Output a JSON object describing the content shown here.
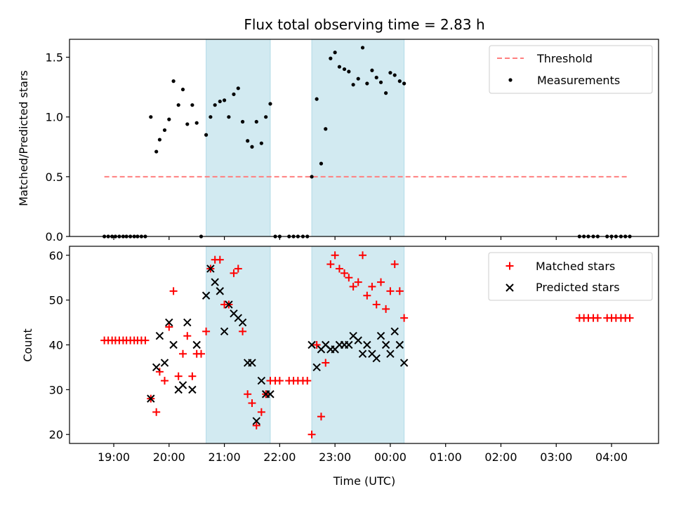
{
  "chart_data": [
    {
      "type": "scatter",
      "title": "Flux total observing time = 2.83 h",
      "xlabel": "",
      "ylabel": "Matched/Predicted stars",
      "ylim": [
        0,
        1.65
      ],
      "yticks": [
        "0.0",
        "0.5",
        "1.0",
        "1.5"
      ],
      "x_range_hours": [
        18.2,
        28.85
      ],
      "shaded_intervals_hours": [
        [
          20.67,
          21.83
        ],
        [
          22.58,
          24.25
        ]
      ],
      "legend": {
        "placement": "top-right",
        "entries": [
          "Threshold",
          "Measurements"
        ]
      },
      "colors": {
        "threshold": "#ff7f7f",
        "measurements": "#000000",
        "shade": "#add8e6"
      },
      "threshold": {
        "name": "Threshold",
        "value": 0.5,
        "x_hours": [
          18.83,
          28.3
        ]
      },
      "measurements": {
        "name": "Measurements",
        "points": [
          [
            18.83,
            0
          ],
          [
            18.9,
            0
          ],
          [
            18.97,
            0
          ],
          [
            19.03,
            0
          ],
          [
            19.1,
            0
          ],
          [
            19.17,
            0
          ],
          [
            19.23,
            0
          ],
          [
            19.3,
            0
          ],
          [
            19.37,
            0
          ],
          [
            19.43,
            0
          ],
          [
            19.5,
            0
          ],
          [
            19.57,
            0
          ],
          [
            19.67,
            1.0
          ],
          [
            19.77,
            0.71
          ],
          [
            19.83,
            0.81
          ],
          [
            19.92,
            0.89
          ],
          [
            20.0,
            0.98
          ],
          [
            20.08,
            1.3
          ],
          [
            20.17,
            1.1
          ],
          [
            20.25,
            1.23
          ],
          [
            20.33,
            0.94
          ],
          [
            20.42,
            1.1
          ],
          [
            20.5,
            0.95
          ],
          [
            20.58,
            0
          ],
          [
            20.67,
            0.85
          ],
          [
            20.75,
            1.0
          ],
          [
            20.83,
            1.1
          ],
          [
            20.92,
            1.13
          ],
          [
            21.0,
            1.14
          ],
          [
            21.08,
            1.0
          ],
          [
            21.17,
            1.19
          ],
          [
            21.25,
            1.24
          ],
          [
            21.33,
            0.96
          ],
          [
            21.42,
            0.8
          ],
          [
            21.5,
            0.75
          ],
          [
            21.58,
            0.96
          ],
          [
            21.67,
            0.78
          ],
          [
            21.75,
            1.0
          ],
          [
            21.83,
            1.11
          ],
          [
            21.92,
            0
          ],
          [
            22.0,
            0
          ],
          [
            22.17,
            0
          ],
          [
            22.25,
            0
          ],
          [
            22.33,
            0
          ],
          [
            22.42,
            0
          ],
          [
            22.5,
            0
          ],
          [
            22.58,
            0.5
          ],
          [
            22.67,
            1.15
          ],
          [
            22.75,
            0.61
          ],
          [
            22.83,
            0.9
          ],
          [
            22.92,
            1.49
          ],
          [
            23.0,
            1.54
          ],
          [
            23.08,
            1.42
          ],
          [
            23.17,
            1.4
          ],
          [
            23.25,
            1.38
          ],
          [
            23.33,
            1.27
          ],
          [
            23.42,
            1.32
          ],
          [
            23.5,
            1.58
          ],
          [
            23.58,
            1.28
          ],
          [
            23.67,
            1.39
          ],
          [
            23.75,
            1.33
          ],
          [
            23.83,
            1.29
          ],
          [
            23.92,
            1.2
          ],
          [
            24.0,
            1.37
          ],
          [
            24.08,
            1.35
          ],
          [
            24.17,
            1.3
          ],
          [
            24.25,
            1.28
          ],
          [
            27.42,
            0
          ],
          [
            27.5,
            0
          ],
          [
            27.58,
            0
          ],
          [
            27.67,
            0
          ],
          [
            27.75,
            0
          ],
          [
            27.92,
            0
          ],
          [
            28.0,
            0
          ],
          [
            28.08,
            0
          ],
          [
            28.17,
            0
          ],
          [
            28.25,
            0
          ],
          [
            28.33,
            0
          ]
        ]
      }
    },
    {
      "type": "scatter",
      "title": "",
      "xlabel": "Time (UTC)",
      "ylabel": "Count",
      "ylim": [
        18,
        62
      ],
      "yticks": [
        "20",
        "30",
        "40",
        "50",
        "60"
      ],
      "x_tick_labels": [
        "19:00",
        "20:00",
        "21:00",
        "22:00",
        "23:00",
        "00:00",
        "01:00",
        "02:00",
        "03:00",
        "04:00"
      ],
      "x_tick_hours": [
        19,
        20,
        21,
        22,
        23,
        24,
        25,
        26,
        27,
        28
      ],
      "x_range_hours": [
        18.2,
        28.85
      ],
      "shaded_intervals_hours": [
        [
          20.67,
          21.83
        ],
        [
          22.58,
          24.25
        ]
      ],
      "legend": {
        "placement": "top-right",
        "entries": [
          "Matched stars",
          "Predicted stars"
        ]
      },
      "colors": {
        "matched": "#ff0000",
        "predicted": "#000000",
        "shade": "#add8e6"
      },
      "series": [
        {
          "name": "Matched stars",
          "marker": "plus",
          "points": [
            [
              18.83,
              41
            ],
            [
              18.9,
              41
            ],
            [
              18.97,
              41
            ],
            [
              19.03,
              41
            ],
            [
              19.1,
              41
            ],
            [
              19.17,
              41
            ],
            [
              19.23,
              41
            ],
            [
              19.3,
              41
            ],
            [
              19.37,
              41
            ],
            [
              19.43,
              41
            ],
            [
              19.5,
              41
            ],
            [
              19.57,
              41
            ],
            [
              19.67,
              28
            ],
            [
              19.77,
              25
            ],
            [
              19.83,
              34
            ],
            [
              19.92,
              32
            ],
            [
              20.0,
              44
            ],
            [
              20.08,
              52
            ],
            [
              20.17,
              33
            ],
            [
              20.25,
              38
            ],
            [
              20.33,
              42
            ],
            [
              20.42,
              33
            ],
            [
              20.5,
              38
            ],
            [
              20.58,
              38
            ],
            [
              20.67,
              43
            ],
            [
              20.75,
              57
            ],
            [
              20.83,
              59
            ],
            [
              20.92,
              59
            ],
            [
              21.0,
              49
            ],
            [
              21.08,
              49
            ],
            [
              21.17,
              56
            ],
            [
              21.25,
              57
            ],
            [
              21.33,
              43
            ],
            [
              21.42,
              29
            ],
            [
              21.5,
              27
            ],
            [
              21.58,
              22
            ],
            [
              21.67,
              25
            ],
            [
              21.75,
              29
            ],
            [
              21.83,
              32
            ],
            [
              21.92,
              32
            ],
            [
              22.0,
              32
            ],
            [
              22.17,
              32
            ],
            [
              22.25,
              32
            ],
            [
              22.33,
              32
            ],
            [
              22.42,
              32
            ],
            [
              22.5,
              32
            ],
            [
              22.58,
              20
            ],
            [
              22.67,
              40
            ],
            [
              22.75,
              24
            ],
            [
              22.83,
              36
            ],
            [
              22.92,
              58
            ],
            [
              23.0,
              60
            ],
            [
              23.08,
              57
            ],
            [
              23.17,
              56
            ],
            [
              23.25,
              55
            ],
            [
              23.33,
              53
            ],
            [
              23.42,
              54
            ],
            [
              23.5,
              60
            ],
            [
              23.58,
              51
            ],
            [
              23.67,
              53
            ],
            [
              23.75,
              49
            ],
            [
              23.83,
              54
            ],
            [
              23.92,
              48
            ],
            [
              24.0,
              52
            ],
            [
              24.08,
              58
            ],
            [
              24.17,
              52
            ],
            [
              24.25,
              46
            ],
            [
              27.42,
              46
            ],
            [
              27.5,
              46
            ],
            [
              27.58,
              46
            ],
            [
              27.67,
              46
            ],
            [
              27.75,
              46
            ],
            [
              27.92,
              46
            ],
            [
              28.0,
              46
            ],
            [
              28.08,
              46
            ],
            [
              28.17,
              46
            ],
            [
              28.25,
              46
            ],
            [
              28.33,
              46
            ]
          ]
        },
        {
          "name": "Predicted stars",
          "marker": "x",
          "points": [
            [
              19.67,
              28
            ],
            [
              19.77,
              35
            ],
            [
              19.83,
              42
            ],
            [
              19.92,
              36
            ],
            [
              20.0,
              45
            ],
            [
              20.08,
              40
            ],
            [
              20.17,
              30
            ],
            [
              20.25,
              31
            ],
            [
              20.33,
              45
            ],
            [
              20.42,
              30
            ],
            [
              20.5,
              40
            ],
            [
              20.67,
              51
            ],
            [
              20.75,
              57
            ],
            [
              20.83,
              54
            ],
            [
              20.92,
              52
            ],
            [
              21.0,
              43
            ],
            [
              21.08,
              49
            ],
            [
              21.17,
              47
            ],
            [
              21.25,
              46
            ],
            [
              21.33,
              45
            ],
            [
              21.42,
              36
            ],
            [
              21.5,
              36
            ],
            [
              21.58,
              23
            ],
            [
              21.67,
              32
            ],
            [
              21.75,
              29
            ],
            [
              21.83,
              29
            ],
            [
              22.58,
              40
            ],
            [
              22.67,
              35
            ],
            [
              22.75,
              39
            ],
            [
              22.83,
              40
            ],
            [
              22.92,
              39
            ],
            [
              23.0,
              39
            ],
            [
              23.08,
              40
            ],
            [
              23.17,
              40
            ],
            [
              23.25,
              40
            ],
            [
              23.33,
              42
            ],
            [
              23.42,
              41
            ],
            [
              23.5,
              38
            ],
            [
              23.58,
              40
            ],
            [
              23.67,
              38
            ],
            [
              23.75,
              37
            ],
            [
              23.83,
              42
            ],
            [
              23.92,
              40
            ],
            [
              24.0,
              38
            ],
            [
              24.08,
              43
            ],
            [
              24.17,
              40
            ],
            [
              24.25,
              36
            ]
          ]
        }
      ]
    }
  ]
}
